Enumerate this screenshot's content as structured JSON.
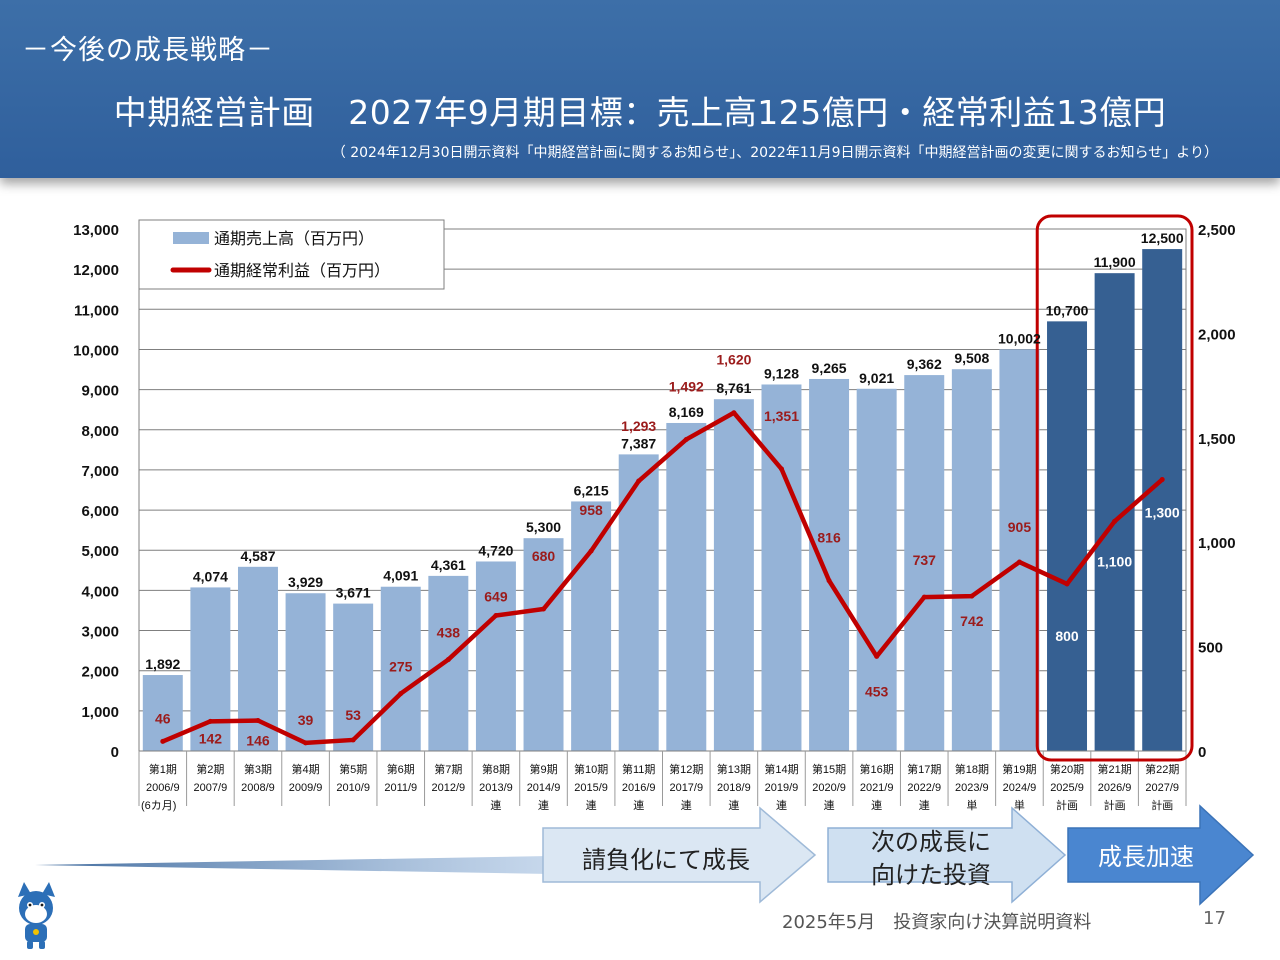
{
  "header": {
    "tag": "－今後の成長戦略－",
    "title": "中期経営計画　2027年9月期目標：売上高125億円・経常利益13億円",
    "note": "（ 2024年12月30日開示資料「中期経営計画に関するお知らせ」、2022年11月9日開示資料「中期経営計画の変更に関するお知らせ」より）"
  },
  "chart_data": {
    "type": "bar",
    "categories": [
      [
        "第1期",
        "2006/9",
        "(6カ月)"
      ],
      [
        "第2期",
        "2007/9",
        ""
      ],
      [
        "第3期",
        "2008/9",
        ""
      ],
      [
        "第4期",
        "2009/9",
        ""
      ],
      [
        "第5期",
        "2010/9",
        ""
      ],
      [
        "第6期",
        "2011/9",
        ""
      ],
      [
        "第7期",
        "2012/9",
        ""
      ],
      [
        "第8期",
        "2013/9",
        "連"
      ],
      [
        "第9期",
        "2014/9",
        "連"
      ],
      [
        "第10期",
        "2015/9",
        "連"
      ],
      [
        "第11期",
        "2016/9",
        "連"
      ],
      [
        "第12期",
        "2017/9",
        "連"
      ],
      [
        "第13期",
        "2018/9",
        "連"
      ],
      [
        "第14期",
        "2019/9",
        "連"
      ],
      [
        "第15期",
        "2020/9",
        "連"
      ],
      [
        "第16期",
        "2021/9",
        "連"
      ],
      [
        "第17期",
        "2022/9",
        "連"
      ],
      [
        "第18期",
        "2023/9",
        "単"
      ],
      [
        "第19期",
        "2024/9",
        "単"
      ],
      [
        "第20期",
        "2025/9",
        "計画"
      ],
      [
        "第21期",
        "2026/9",
        "計画"
      ],
      [
        "第22期",
        "2027/9",
        "計画"
      ]
    ],
    "series": [
      {
        "name": "通期売上高（百万円）",
        "kind": "bar",
        "axis": "left",
        "values": [
          1892,
          4074,
          4587,
          3929,
          3671,
          4091,
          4361,
          4720,
          5300,
          6215,
          7387,
          8169,
          8761,
          9128,
          9265,
          9021,
          9362,
          9508,
          10002,
          10700,
          11900,
          12500
        ],
        "labels": [
          "1,892",
          "4,074",
          "4,587",
          "3,929",
          "3,671",
          "4,091",
          "4,361",
          "4,720",
          "5,300",
          "6,215",
          "7,387",
          "8,169",
          "8,761",
          "9,128",
          "9,265",
          "9,021",
          "9,362",
          "9,508",
          "10,002",
          "10,700",
          "11,900",
          "12,500"
        ],
        "color": "#95b3d7",
        "plan_color": "#366092"
      },
      {
        "name": "通期経常利益（百万円）",
        "kind": "line",
        "axis": "right",
        "values": [
          46,
          142,
          146,
          39,
          53,
          275,
          438,
          649,
          680,
          958,
          1293,
          1492,
          1620,
          1351,
          816,
          453,
          737,
          742,
          905,
          800,
          1100,
          1300
        ],
        "labels": [
          "46",
          "142",
          "146",
          "39",
          "53",
          "275",
          "438",
          "649",
          "680",
          "958",
          "1,293",
          "1,492",
          "1,620",
          "1,351",
          "816",
          "453",
          "737",
          "742",
          "905",
          "800",
          "1,100",
          "1,300"
        ],
        "color": "#c00000"
      }
    ],
    "plan_start_index": 19,
    "ylim_left": [
      0,
      13000
    ],
    "ylim_right": [
      0,
      2500
    ],
    "yticks_left": [
      "0",
      "1,000",
      "2,000",
      "3,000",
      "4,000",
      "5,000",
      "6,000",
      "7,000",
      "8,000",
      "9,000",
      "10,000",
      "11,000",
      "12,000",
      "13,000"
    ],
    "yticks_right": [
      "0",
      "500",
      "1,000",
      "1,500",
      "2,000",
      "2,500"
    ],
    "grid": true,
    "legend_position": "top-left"
  },
  "arrows": {
    "stage1": "請負化にて成長",
    "stage2_line1": "次の成長に",
    "stage2_line2": "向けた投資",
    "stage3": "成長加速"
  },
  "footer": {
    "text": "2025年5月　投資家向け決算説明資料",
    "page": "17"
  },
  "colors": {
    "header_bg": "#3465a4",
    "bar": "#95b3d7",
    "bar_plan": "#366092",
    "line": "#c00000",
    "highlight": "#c00000",
    "arrow_light": "#dbe7f3",
    "arrow_dark": "#4a86d0"
  }
}
